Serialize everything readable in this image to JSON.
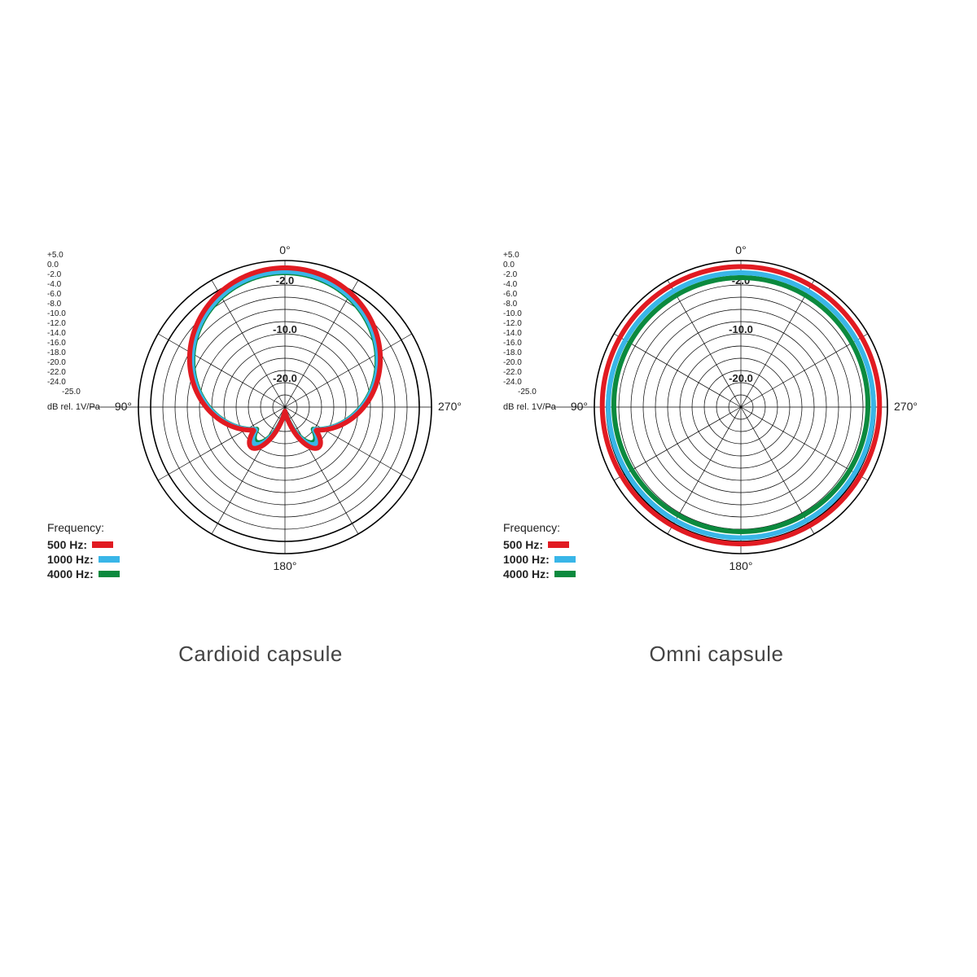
{
  "background_color": "#ffffff",
  "grid_color": "#000000",
  "grid_stroke": 0.7,
  "heavy_stroke": 1.6,
  "ring_count": 12,
  "spoke_count": 12,
  "angle_labels": {
    "top": "0°",
    "right": "270°",
    "bottom": "180°",
    "left": "90°"
  },
  "ring_labels": [
    {
      "text": "-2.0",
      "ring_from_outer": 1
    },
    {
      "text": "-10.0",
      "ring_from_outer": 5
    },
    {
      "text": "-20.0",
      "ring_from_outer": 9
    }
  ],
  "scale_ticks": [
    "+5.0",
    "0.0",
    "-2.0",
    "-4.0",
    "-6.0",
    "-8.0",
    "-10.0",
    "-12.0",
    "-14.0",
    "-16.0",
    "-18.0",
    "-20.0",
    "-22.0",
    "-24.0"
  ],
  "scale_floor": "-25.0",
  "scale_unit": "dB rel. 1V/Pa",
  "legend": {
    "title": "Frequency:",
    "items": [
      {
        "label": "500 Hz:",
        "color": "#e11b22"
      },
      {
        "label": "1000 Hz:",
        "color": "#39b6e8"
      },
      {
        "label": "4000 Hz:",
        "color": "#0b8a3e"
      }
    ]
  },
  "series_stroke_width": 6,
  "charts": [
    {
      "caption": "Cardioid capsule",
      "type": "polar-cardioid",
      "series": [
        {
          "color": "#0b8a3e",
          "peak_ring": 11.0,
          "null_depth_ring": 0.3,
          "back_lobe_ring": 3.4
        },
        {
          "color": "#39b6e8",
          "peak_ring": 11.1,
          "null_depth_ring": 0.3,
          "back_lobe_ring": 3.6
        },
        {
          "color": "#e11b22",
          "peak_ring": 11.4,
          "null_depth_ring": 0.3,
          "back_lobe_ring": 4.0
        }
      ]
    },
    {
      "caption": "Omni capsule",
      "type": "polar-omni",
      "series": [
        {
          "color": "#0b8a3e",
          "radius_ring_top": 10.6,
          "radius_ring_bottom": 10.2
        },
        {
          "color": "#39b6e8",
          "radius_ring_top": 11.0,
          "radius_ring_bottom": 10.7
        },
        {
          "color": "#e11b22",
          "radius_ring_top": 11.5,
          "radius_ring_bottom": 11.2
        }
      ]
    }
  ]
}
